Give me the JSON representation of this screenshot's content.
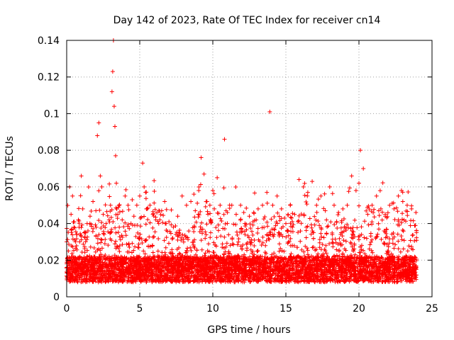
{
  "chart_data": {
    "type": "scatter",
    "title": "Day 142 of 2023, Rate Of TEC Index for receiver cn14",
    "xlabel": "GPS time / hours",
    "ylabel": "ROTI / TECUs",
    "xlim": [
      0,
      25
    ],
    "ylim": [
      0,
      0.14
    ],
    "xticks": [
      0,
      5,
      10,
      15,
      20,
      25
    ],
    "xtick_labels": [
      "0",
      "5",
      "10",
      "15",
      "20",
      "25"
    ],
    "yticks": [
      0,
      0.02,
      0.04,
      0.06,
      0.08,
      0.1,
      0.12,
      0.14
    ],
    "ytick_labels": [
      "0",
      "0.02",
      "0.04",
      "0.06",
      "0.08",
      "0.1",
      "0.12",
      "0.14"
    ],
    "grid": true,
    "marker": "plus",
    "color": "#ff0000",
    "series": [
      {
        "name": "ROTI",
        "x": [
          0.0,
          0.2,
          0.3,
          0.4,
          0.5,
          0.6,
          0.8,
          1.0,
          1.1,
          1.2,
          1.4,
          1.6,
          1.8,
          2.0,
          2.1,
          2.2,
          2.3,
          2.4,
          2.5,
          2.7,
          2.9,
          3.0,
          3.1,
          3.15,
          3.2,
          3.25,
          3.3,
          3.35,
          3.4,
          3.5,
          3.6,
          3.8,
          4.0,
          4.2,
          4.4,
          4.6,
          4.8,
          5.0,
          5.2,
          5.3,
          5.4,
          5.5,
          5.7,
          5.9,
          6.1,
          6.3,
          6.5,
          6.8,
          7.0,
          7.3,
          7.6,
          7.9,
          8.2,
          8.5,
          8.8,
          9.0,
          9.2,
          9.4,
          9.6,
          9.8,
          10.0,
          10.1,
          10.3,
          10.5,
          10.8,
          11.0,
          11.3,
          11.6,
          11.9,
          12.2,
          12.5,
          12.8,
          13.1,
          13.4,
          13.7,
          13.9,
          14.1,
          14.4,
          14.7,
          15.0,
          15.3,
          15.6,
          15.9,
          16.2,
          16.5,
          16.8,
          17.1,
          17.4,
          17.7,
          18.0,
          18.3,
          18.6,
          18.9,
          19.2,
          19.5,
          19.8,
          20.0,
          20.1,
          20.3,
          20.6,
          20.9,
          21.2,
          21.5,
          21.8,
          22.1,
          22.4,
          22.7,
          23.0,
          23.3,
          23.6,
          23.9
        ],
        "y": [
          0.03,
          0.06,
          0.045,
          0.055,
          0.038,
          0.03,
          0.042,
          0.066,
          0.048,
          0.035,
          0.04,
          0.044,
          0.052,
          0.047,
          0.088,
          0.095,
          0.066,
          0.06,
          0.045,
          0.04,
          0.042,
          0.05,
          0.112,
          0.123,
          0.14,
          0.104,
          0.093,
          0.077,
          0.062,
          0.045,
          0.038,
          0.042,
          0.055,
          0.05,
          0.04,
          0.044,
          0.05,
          0.055,
          0.073,
          0.06,
          0.057,
          0.048,
          0.05,
          0.045,
          0.042,
          0.04,
          0.047,
          0.04,
          0.041,
          0.038,
          0.044,
          0.055,
          0.05,
          0.052,
          0.047,
          0.045,
          0.076,
          0.067,
          0.052,
          0.05,
          0.058,
          0.048,
          0.065,
          0.05,
          0.086,
          0.046,
          0.05,
          0.045,
          0.05,
          0.04,
          0.044,
          0.046,
          0.048,
          0.05,
          0.057,
          0.101,
          0.05,
          0.055,
          0.048,
          0.04,
          0.05,
          0.045,
          0.064,
          0.06,
          0.057,
          0.063,
          0.05,
          0.055,
          0.047,
          0.06,
          0.05,
          0.046,
          0.048,
          0.05,
          0.066,
          0.058,
          0.062,
          0.08,
          0.07,
          0.045,
          0.05,
          0.055,
          0.048,
          0.045,
          0.05,
          0.048,
          0.055,
          0.052,
          0.05,
          0.048,
          0.046
        ]
      }
    ]
  }
}
